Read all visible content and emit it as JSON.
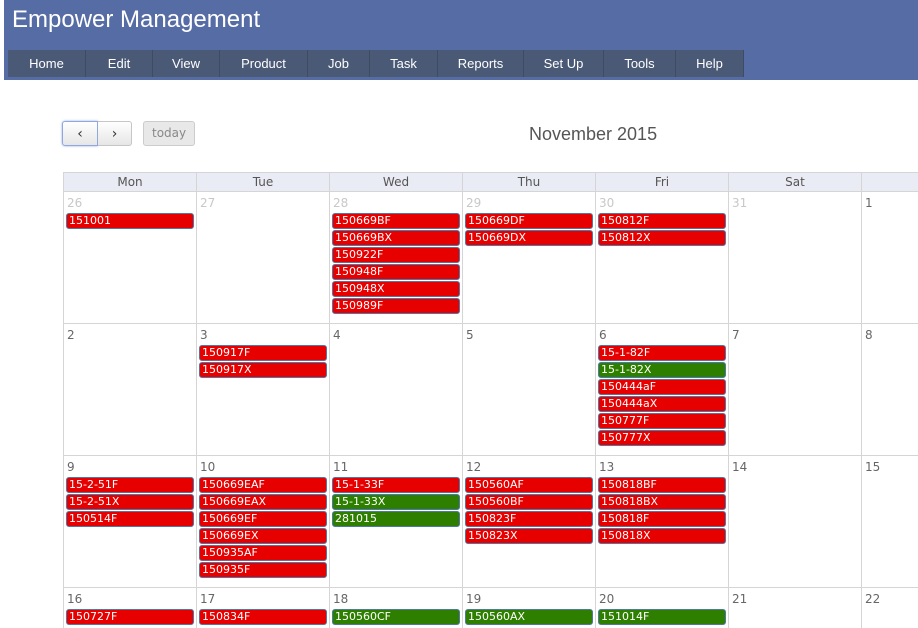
{
  "app": {
    "title": "Empower Management"
  },
  "menu": [
    "Home",
    "Edit",
    "View",
    "Product",
    "Job",
    "Task",
    "Reports",
    "Set Up",
    "Tools",
    "Help"
  ],
  "toolbar": {
    "prev_icon": "chevron-left-icon",
    "prev_label": "‹",
    "next_icon": "chevron-right-icon",
    "next_label": "›",
    "today_label": "today"
  },
  "calendar": {
    "title": "November 2015",
    "days_of_week": [
      "Mon",
      "Tue",
      "Wed",
      "Thu",
      "Fri",
      "Sat",
      ""
    ],
    "colors": {
      "red": "#e60000",
      "green": "#2e7f00"
    },
    "weeks": [
      [
        {
          "day": "26",
          "other": true,
          "events": [
            {
              "label": "151001",
              "color": "red"
            }
          ]
        },
        {
          "day": "27",
          "other": true,
          "events": []
        },
        {
          "day": "28",
          "other": true,
          "events": [
            {
              "label": "150669BF",
              "color": "red"
            },
            {
              "label": "150669BX",
              "color": "red"
            },
            {
              "label": "150922F",
              "color": "red"
            },
            {
              "label": "150948F",
              "color": "red"
            },
            {
              "label": "150948X",
              "color": "red"
            },
            {
              "label": "150989F",
              "color": "red"
            }
          ]
        },
        {
          "day": "29",
          "other": true,
          "events": [
            {
              "label": "150669DF",
              "color": "red"
            },
            {
              "label": "150669DX",
              "color": "red"
            }
          ]
        },
        {
          "day": "30",
          "other": true,
          "events": [
            {
              "label": "150812F",
              "color": "red"
            },
            {
              "label": "150812X",
              "color": "red"
            }
          ]
        },
        {
          "day": "31",
          "other": true,
          "events": []
        },
        {
          "day": "1",
          "other": false,
          "events": []
        }
      ],
      [
        {
          "day": "2",
          "events": []
        },
        {
          "day": "3",
          "events": [
            {
              "label": "150917F",
              "color": "red"
            },
            {
              "label": "150917X",
              "color": "red"
            }
          ]
        },
        {
          "day": "4",
          "events": []
        },
        {
          "day": "5",
          "events": []
        },
        {
          "day": "6",
          "events": [
            {
              "label": "15-1-82F",
              "color": "red"
            },
            {
              "label": "15-1-82X",
              "color": "green"
            },
            {
              "label": "150444aF",
              "color": "red"
            },
            {
              "label": "150444aX",
              "color": "red"
            },
            {
              "label": "150777F",
              "color": "red"
            },
            {
              "label": "150777X",
              "color": "red"
            }
          ]
        },
        {
          "day": "7",
          "events": []
        },
        {
          "day": "8",
          "events": []
        }
      ],
      [
        {
          "day": "9",
          "events": [
            {
              "label": "15-2-51F",
              "color": "red"
            },
            {
              "label": "15-2-51X",
              "color": "red"
            },
            {
              "label": "150514F",
              "color": "red"
            }
          ]
        },
        {
          "day": "10",
          "events": [
            {
              "label": "150669EAF",
              "color": "red"
            },
            {
              "label": "150669EAX",
              "color": "red"
            },
            {
              "label": "150669EF",
              "color": "red"
            },
            {
              "label": "150669EX",
              "color": "red"
            },
            {
              "label": "150935AF",
              "color": "red"
            },
            {
              "label": "150935F",
              "color": "red"
            }
          ]
        },
        {
          "day": "11",
          "events": [
            {
              "label": "15-1-33F",
              "color": "red"
            },
            {
              "label": "15-1-33X",
              "color": "green"
            },
            {
              "label": "281015",
              "color": "green"
            }
          ]
        },
        {
          "day": "12",
          "events": [
            {
              "label": "150560AF",
              "color": "red"
            },
            {
              "label": "150560BF",
              "color": "red"
            },
            {
              "label": "150823F",
              "color": "red"
            },
            {
              "label": "150823X",
              "color": "red"
            }
          ]
        },
        {
          "day": "13",
          "events": [
            {
              "label": "150818BF",
              "color": "red"
            },
            {
              "label": "150818BX",
              "color": "red"
            },
            {
              "label": "150818F",
              "color": "red"
            },
            {
              "label": "150818X",
              "color": "red"
            }
          ]
        },
        {
          "day": "14",
          "events": []
        },
        {
          "day": "15",
          "events": []
        }
      ],
      [
        {
          "day": "16",
          "events": [
            {
              "label": "150727F",
              "color": "red"
            }
          ]
        },
        {
          "day": "17",
          "events": [
            {
              "label": "150834F",
              "color": "red"
            }
          ]
        },
        {
          "day": "18",
          "events": [
            {
              "label": "150560CF",
              "color": "green"
            }
          ]
        },
        {
          "day": "19",
          "events": [
            {
              "label": "150560AX",
              "color": "green"
            }
          ]
        },
        {
          "day": "20",
          "events": [
            {
              "label": "151014F",
              "color": "green"
            }
          ]
        },
        {
          "day": "21",
          "events": []
        },
        {
          "day": "22",
          "events": []
        }
      ]
    ]
  }
}
